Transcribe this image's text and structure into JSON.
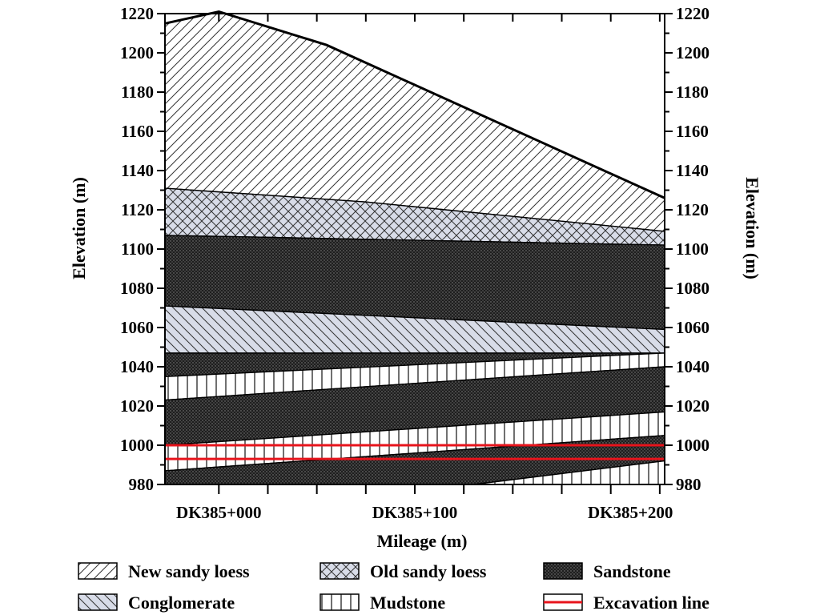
{
  "chart_data": {
    "type": "area",
    "title": "",
    "xlabel": "Mileage (m)",
    "ylabel": "Elevation (m)",
    "ylabel_right": "Elevation (m)",
    "xlim": [
      -1.1,
      9.1
    ],
    "ylim": [
      980,
      1220
    ],
    "y_ticks": [
      "980",
      "1000",
      "1020",
      "1040",
      "1060",
      "1080",
      "1100",
      "1120",
      "1140",
      "1160",
      "1180",
      "1200",
      "1220"
    ],
    "x_tick_positions": [
      0,
      1,
      2,
      3,
      4,
      5,
      6,
      7,
      8,
      9
    ],
    "x_tick_labels": [
      {
        "x": 0,
        "label": "DK385+000"
      },
      {
        "x": 4,
        "label": "DK385+100"
      },
      {
        "x": 8.4,
        "label": "DK385+200"
      }
    ],
    "grid": false,
    "legend_position": "bottom",
    "ground_surface": [
      [
        -1.1,
        1215
      ],
      [
        0,
        1221
      ],
      [
        2.2,
        1204
      ],
      [
        9.1,
        1126
      ]
    ],
    "layers": [
      {
        "name": "New sandy loess",
        "pattern": "hatch-forward",
        "top": [
          [
            -1.1,
            1215
          ],
          [
            0,
            1221
          ],
          [
            2.2,
            1204
          ],
          [
            9.1,
            1126
          ]
        ],
        "bottom": [
          [
            -1.1,
            1131
          ],
          [
            3,
            1124
          ],
          [
            9.1,
            1109
          ]
        ]
      },
      {
        "name": "Old sandy loess",
        "pattern": "crosshatch",
        "top": [
          [
            -1.1,
            1131
          ],
          [
            3,
            1124
          ],
          [
            9.1,
            1109
          ]
        ],
        "bottom": [
          [
            -1.1,
            1107
          ],
          [
            9.1,
            1102
          ]
        ]
      },
      {
        "name": "Sandstone",
        "pattern": "dots",
        "top": [
          [
            -1.1,
            1107
          ],
          [
            9.1,
            1102
          ]
        ],
        "bottom": [
          [
            -1.1,
            1071
          ],
          [
            9.1,
            1059
          ]
        ]
      },
      {
        "name": "Conglomerate",
        "pattern": "hatch-back",
        "top": [
          [
            -1.1,
            1071
          ],
          [
            9.1,
            1059
          ]
        ],
        "bottom": [
          [
            -1.1,
            1047
          ],
          [
            9.1,
            1047
          ]
        ]
      },
      {
        "name": "Sandstone",
        "pattern": "dots",
        "top": [
          [
            -1.1,
            1047
          ],
          [
            9.1,
            1047
          ]
        ],
        "bottom": [
          [
            -1.1,
            1035
          ],
          [
            9.1,
            1047
          ]
        ]
      },
      {
        "name": "Mudstone",
        "pattern": "vertical",
        "top": [
          [
            -1.1,
            1035
          ],
          [
            9.1,
            1047
          ]
        ],
        "bottom": [
          [
            -1.1,
            1023
          ],
          [
            9.1,
            1040
          ]
        ]
      },
      {
        "name": "Sandstone",
        "pattern": "dots",
        "top": [
          [
            -1.1,
            1023
          ],
          [
            9.1,
            1040
          ]
        ],
        "bottom": [
          [
            -1.1,
            1000
          ],
          [
            9.1,
            1017
          ]
        ]
      },
      {
        "name": "Mudstone",
        "pattern": "vertical",
        "top": [
          [
            -1.1,
            1000
          ],
          [
            9.1,
            1017
          ]
        ],
        "bottom": [
          [
            -1.1,
            987
          ],
          [
            9.1,
            1005
          ]
        ]
      },
      {
        "name": "Sandstone",
        "pattern": "dots",
        "top": [
          [
            -1.1,
            987
          ],
          [
            9.1,
            1005
          ]
        ],
        "bottom": [
          [
            -1.1,
            980
          ],
          [
            5.2,
            980
          ],
          [
            9.1,
            992
          ]
        ]
      },
      {
        "name": "Mudstone",
        "pattern": "vertical",
        "top": [
          [
            5.2,
            980
          ],
          [
            9.1,
            992
          ]
        ],
        "bottom": [
          [
            5.2,
            980
          ],
          [
            9.1,
            980
          ]
        ]
      }
    ],
    "excavation_lines": [
      [
        [
          -1.1,
          1000
        ],
        [
          9.1,
          1000
        ]
      ],
      [
        [
          -1.1,
          993
        ],
        [
          9.1,
          993
        ]
      ]
    ],
    "legend": [
      {
        "label": "New sandy loess",
        "pattern": "hatch-forward"
      },
      {
        "label": "Old sandy loess",
        "pattern": "crosshatch"
      },
      {
        "label": "Sandstone",
        "pattern": "dots"
      },
      {
        "label": "Conglomerate",
        "pattern": "hatch-back"
      },
      {
        "label": "Mudstone",
        "pattern": "vertical"
      },
      {
        "label": "Excavation line",
        "pattern": "line",
        "color": "#e8141c"
      }
    ],
    "colors": {
      "excavation": "#e8141c",
      "old_loess_bg": "#d8dce8",
      "conglomerate_bg": "#d8dce8",
      "sandstone_bg": "#1e1e1e"
    }
  }
}
